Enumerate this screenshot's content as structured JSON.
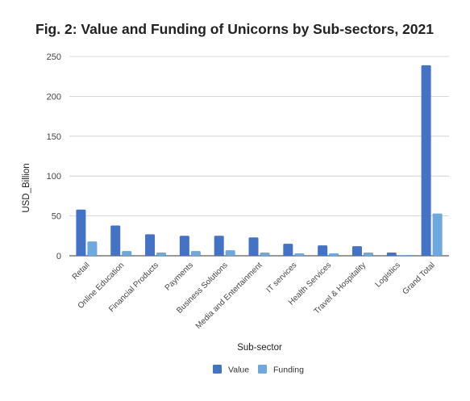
{
  "chart_data": {
    "type": "bar",
    "title": "Fig. 2: Value and Funding of Unicorns by Sub-sectors, 2021",
    "xlabel": "Sub-sector",
    "ylabel": "USD_Billion",
    "ylim": [
      0,
      250
    ],
    "yticks": [
      0,
      50,
      100,
      150,
      200,
      250
    ],
    "grid": true,
    "legend_position": "bottom",
    "categories": [
      "Retail",
      "Online Education",
      "Financial Products",
      "Payments",
      "Business Solutions",
      "Media and Entertainment",
      "IT services",
      "Health Services",
      "Travel & Hospitality",
      "Logistics",
      "Grand Total"
    ],
    "series": [
      {
        "name": "Value",
        "color": "#4472c4",
        "values": [
          58,
          38,
          27,
          25,
          25,
          23,
          15,
          13,
          12,
          4,
          239
        ]
      },
      {
        "name": "Funding",
        "color": "#6fa8dc",
        "values": [
          18,
          6,
          4,
          6,
          7,
          4,
          3,
          3,
          4,
          1,
          53
        ]
      }
    ]
  }
}
